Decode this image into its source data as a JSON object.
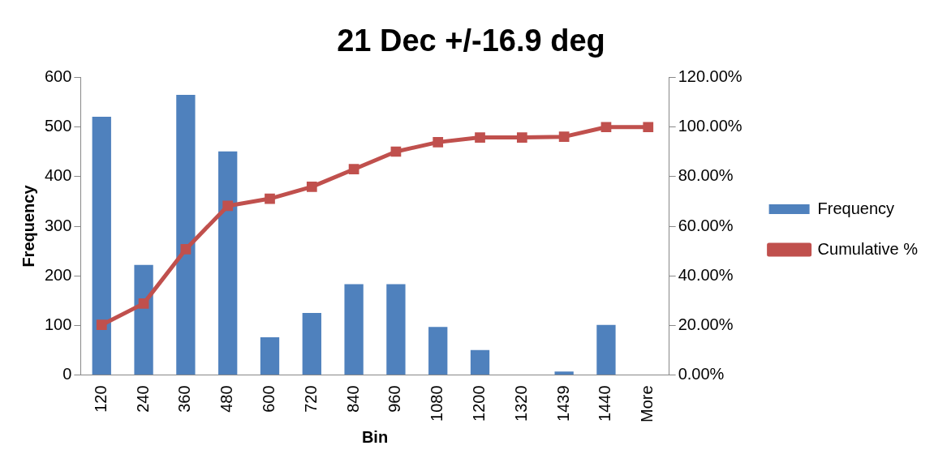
{
  "chart_data": {
    "type": "bar",
    "title": "21 Dec +/-16.9 deg",
    "xlabel": "Bin",
    "ylabel": "Frequency",
    "categories": [
      "120",
      "240",
      "360",
      "480",
      "600",
      "720",
      "840",
      "960",
      "1080",
      "1200",
      "1320",
      "1439",
      "1440",
      "More"
    ],
    "series": [
      {
        "name": "Frequency",
        "color": "#4f81bd",
        "values": [
          521,
          222,
          565,
          451,
          76,
          125,
          183,
          183,
          97,
          50,
          0,
          7,
          101,
          0
        ]
      },
      {
        "name": "Cumulative %",
        "type": "line",
        "axis": "y2",
        "color": "#c0504d",
        "marker": "square",
        "values": [
          20.2,
          28.8,
          50.7,
          68.2,
          71.1,
          75.9,
          83.0,
          90.1,
          93.9,
          95.8,
          95.8,
          96.1,
          100,
          100
        ]
      }
    ],
    "ylim": [
      0,
      600
    ],
    "yticks": [
      0,
      100,
      200,
      300,
      400,
      500,
      600
    ],
    "y2lim": [
      0,
      120
    ],
    "y2ticks": [
      {
        "value": 0,
        "label": "0.00%"
      },
      {
        "value": 20,
        "label": "20.00%"
      },
      {
        "value": 40,
        "label": "40.00%"
      },
      {
        "value": 60,
        "label": "60.00%"
      },
      {
        "value": 80,
        "label": "80.00%"
      },
      {
        "value": 100,
        "label": "100.00%"
      },
      {
        "value": 120,
        "label": "120.00%"
      }
    ],
    "grid": false,
    "legend": "right"
  }
}
